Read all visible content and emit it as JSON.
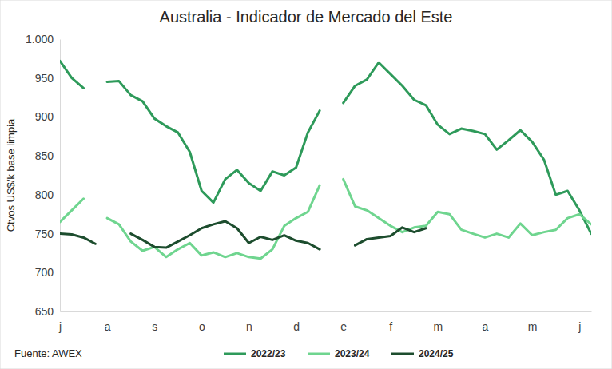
{
  "chart_data": {
    "type": "line",
    "title": "Australia - Indicador de Mercado del Este",
    "y_label": "Ctvos US$/k base limpia",
    "source": "Fuente: AWEX",
    "categories": [
      "j",
      null,
      null,
      null,
      "a",
      null,
      null,
      null,
      "s",
      null,
      null,
      null,
      "o",
      null,
      null,
      null,
      "n",
      null,
      null,
      null,
      "d",
      null,
      null,
      null,
      "e",
      null,
      null,
      null,
      "f",
      null,
      null,
      null,
      "m",
      null,
      null,
      null,
      "a",
      null,
      null,
      null,
      "m",
      null,
      null,
      null,
      "j",
      null
    ],
    "series": [
      {
        "name": "2022/23",
        "color": "#2e9a5a",
        "values": [
          972,
          950,
          937,
          null,
          945,
          946,
          928,
          920,
          898,
          888,
          880,
          855,
          805,
          790,
          820,
          832,
          815,
          805,
          830,
          825,
          835,
          880,
          908,
          null,
          918,
          940,
          948,
          970,
          955,
          940,
          922,
          915,
          890,
          878,
          885,
          882,
          878,
          858,
          870,
          883,
          868,
          845,
          800,
          805,
          780,
          750
        ]
      },
      {
        "name": "2023/24",
        "color": "#6fd58f",
        "values": [
          765,
          780,
          795,
          null,
          770,
          762,
          740,
          728,
          733,
          720,
          730,
          738,
          722,
          726,
          720,
          725,
          720,
          718,
          730,
          760,
          770,
          778,
          812,
          null,
          820,
          785,
          780,
          770,
          760,
          752,
          758,
          760,
          778,
          775,
          755,
          750,
          745,
          750,
          745,
          763,
          748,
          752,
          755,
          770,
          775,
          762
        ]
      },
      {
        "name": "2024/25",
        "color": "#1d4d2e",
        "values": [
          750,
          749,
          745,
          737,
          null,
          null,
          750,
          742,
          733,
          732,
          740,
          748,
          757,
          762,
          766,
          757,
          738,
          746,
          742,
          748,
          741,
          738,
          730,
          null,
          null,
          735,
          743,
          745,
          747,
          758,
          752,
          757,
          null,
          null,
          null,
          null,
          null,
          null,
          null,
          null,
          null,
          null,
          null,
          null,
          null,
          null
        ]
      }
    ],
    "ylim": [
      650,
      1000
    ],
    "yticks": [
      650,
      700,
      750,
      800,
      850,
      900,
      950,
      {
        "value": 1000,
        "label": "1.000"
      }
    ],
    "grid": false,
    "legend": "bottom"
  }
}
